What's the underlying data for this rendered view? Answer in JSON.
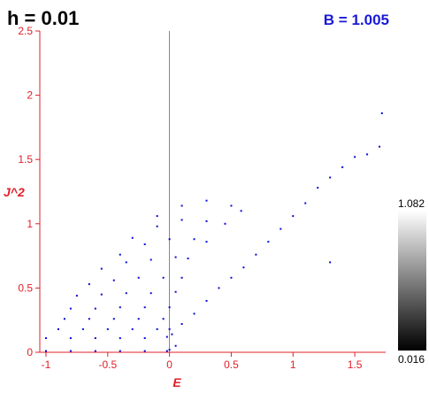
{
  "header": {
    "h_label": "h = 0.01",
    "b_label": "B = 1.005"
  },
  "colors": {
    "axis": "#e0202a",
    "points": "#0a0ad6",
    "text": "#000000",
    "b_text": "#1a1ad8"
  },
  "colorbar": {
    "max_label": "1.082",
    "min_label": "0.016",
    "min": 0.016,
    "max": 1.082
  },
  "chart_data": {
    "type": "scatter",
    "xlabel": "E",
    "ylabel": "J^2",
    "xlim": [
      -1.05,
      1.75
    ],
    "ylim": [
      0,
      2.5
    ],
    "xticks": [
      -1,
      -0.5,
      0,
      0.5,
      1,
      1.5
    ],
    "xtick_labels": [
      "-1",
      "-0.5",
      "0",
      "0.5",
      "1",
      "1.5"
    ],
    "yticks": [
      0,
      0.5,
      1,
      1.5,
      2,
      2.5
    ],
    "ytick_labels": [
      "0",
      "0.5",
      "1",
      "1.5",
      "2",
      "2.5"
    ],
    "grid": false,
    "vertical_reference_line_x": 0,
    "series": [
      {
        "values": [
          [
            -1.0,
            0.01
          ],
          [
            -0.8,
            0.01
          ],
          [
            -0.6,
            0.01
          ],
          [
            -0.4,
            0.01
          ],
          [
            -0.2,
            0.01
          ],
          [
            -0.02,
            0.01
          ],
          [
            -1.0,
            0.11
          ],
          [
            -0.8,
            0.11
          ],
          [
            -0.6,
            0.11
          ],
          [
            -0.4,
            0.11
          ],
          [
            -0.2,
            0.11
          ],
          [
            -0.02,
            0.12
          ],
          [
            -0.9,
            0.18
          ],
          [
            -0.7,
            0.18
          ],
          [
            -0.5,
            0.18
          ],
          [
            -0.3,
            0.18
          ],
          [
            -0.1,
            0.18
          ],
          [
            0.0,
            0.18
          ],
          [
            -0.85,
            0.26
          ],
          [
            -0.65,
            0.26
          ],
          [
            -0.45,
            0.26
          ],
          [
            -0.25,
            0.26
          ],
          [
            -0.05,
            0.26
          ],
          [
            -0.8,
            0.34
          ],
          [
            -0.6,
            0.34
          ],
          [
            -0.4,
            0.35
          ],
          [
            -0.2,
            0.35
          ],
          [
            0.0,
            0.35
          ],
          [
            -0.75,
            0.44
          ],
          [
            -0.55,
            0.45
          ],
          [
            -0.35,
            0.46
          ],
          [
            -0.15,
            0.46
          ],
          [
            0.05,
            0.47
          ],
          [
            -0.65,
            0.53
          ],
          [
            -0.45,
            0.56
          ],
          [
            -0.25,
            0.58
          ],
          [
            -0.05,
            0.58
          ],
          [
            0.1,
            0.58
          ],
          [
            -0.55,
            0.65
          ],
          [
            -0.35,
            0.7
          ],
          [
            -0.15,
            0.72
          ],
          [
            0.05,
            0.74
          ],
          [
            0.15,
            0.73
          ],
          [
            -0.4,
            0.76
          ],
          [
            -0.2,
            0.84
          ],
          [
            0.0,
            0.88
          ],
          [
            0.2,
            0.88
          ],
          [
            0.3,
            0.86
          ],
          [
            -0.3,
            0.89
          ],
          [
            -0.1,
            0.98
          ],
          [
            0.1,
            1.03
          ],
          [
            0.3,
            1.02
          ],
          [
            0.45,
            1.0
          ],
          [
            -0.1,
            1.06
          ],
          [
            0.1,
            1.14
          ],
          [
            0.3,
            1.18
          ],
          [
            0.5,
            1.14
          ],
          [
            0.58,
            1.1
          ],
          [
            0.02,
            0.14
          ],
          [
            0.1,
            0.22
          ],
          [
            0.2,
            0.3
          ],
          [
            0.3,
            0.4
          ],
          [
            0.4,
            0.5
          ],
          [
            0.5,
            0.58
          ],
          [
            0.6,
            0.66
          ],
          [
            0.7,
            0.76
          ],
          [
            0.8,
            0.86
          ],
          [
            0.9,
            0.96
          ],
          [
            1.0,
            1.06
          ],
          [
            1.1,
            1.16
          ],
          [
            1.2,
            1.28
          ],
          [
            1.3,
            1.36
          ],
          [
            1.4,
            1.44
          ],
          [
            1.5,
            1.52
          ],
          [
            1.6,
            1.54
          ],
          [
            1.7,
            1.6
          ],
          [
            1.72,
            1.86
          ],
          [
            1.3,
            0.7
          ],
          [
            0.05,
            0.05
          ],
          [
            0.0,
            0.02
          ]
        ]
      }
    ]
  }
}
